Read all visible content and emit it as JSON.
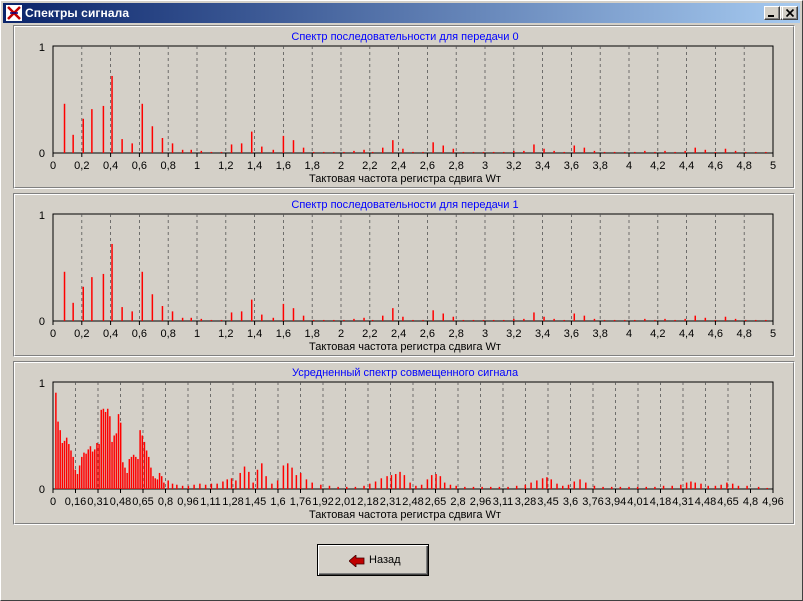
{
  "window": {
    "title": "Спектры сигнала",
    "controls": [
      "minimize",
      "maximize",
      "close"
    ]
  },
  "charts": [
    {
      "title": "Спектр  последовательности для передачи 0",
      "xlabel": "Тактовая частота регистра сдвига Wт",
      "ymax_label": "1",
      "ymin_label": "0",
      "xticks": [
        "0",
        "0,2",
        "0,4",
        "0,6",
        "0,8",
        "1",
        "1,2",
        "1,4",
        "1,6",
        "1,8",
        "2",
        "2,2",
        "2,4",
        "2,6",
        "2,8",
        "3",
        "3,2",
        "3,4",
        "3,6",
        "3,8",
        "4",
        "4,2",
        "4,4",
        "4,6",
        "4,8",
        "5"
      ]
    },
    {
      "title": "Спектр последовательности для передачи 1",
      "xlabel": "Тактовая частота регистра сдвига Wт",
      "ymax_label": "1",
      "ymin_label": "0",
      "xticks": [
        "0",
        "0,2",
        "0,4",
        "0,6",
        "0,8",
        "1",
        "1,2",
        "1,4",
        "1,6",
        "1,8",
        "2",
        "2,2",
        "2,4",
        "2,6",
        "2,8",
        "3",
        "3,2",
        "3,4",
        "3,6",
        "3,8",
        "4",
        "4,2",
        "4,4",
        "4,6",
        "4,8",
        "5"
      ]
    },
    {
      "title": "Усредненный спектр совмещенного сигнала",
      "xlabel": "Тактовая частота регистра сдвига Wт",
      "ymax_label": "1",
      "ymin_label": "0",
      "xticks": [
        "0",
        "0,16",
        "0,31",
        "0,48",
        "0,65",
        "0,8",
        "0,96",
        "1,11",
        "1,28",
        "1,45",
        "1,6",
        "1,76",
        "1,92",
        "2,01",
        "2,18",
        "2,31",
        "2,48",
        "2,65",
        "2,8",
        "2,96",
        "3,11",
        "3,28",
        "3,45",
        "3,6",
        "3,76",
        "3,94",
        "4,01",
        "4,18",
        "4,31",
        "4,48",
        "4,65",
        "4,8",
        "4,96"
      ]
    }
  ],
  "chart_data": [
    {
      "type": "bar",
      "title": "Спектр  последовательности для передачи 0",
      "xlabel": "Тактовая частота регистра сдвига Wт",
      "xlim": [
        0,
        5
      ],
      "ylim": [
        0,
        1
      ],
      "grid": "vertical dashed",
      "color": "#ff0000",
      "x": [
        0.08,
        0.14,
        0.21,
        0.27,
        0.35,
        0.41,
        0.48,
        0.55,
        0.62,
        0.69,
        0.76,
        0.83,
        0.9,
        0.96,
        1.03,
        1.1,
        1.17,
        1.24,
        1.31,
        1.38,
        1.45,
        1.53,
        1.6,
        1.67,
        1.74,
        1.81,
        1.88,
        1.95,
        2.02,
        2.09,
        2.16,
        2.22,
        2.29,
        2.36,
        2.43,
        2.5,
        2.57,
        2.64,
        2.71,
        2.78,
        2.85,
        2.92,
        2.99,
        3.06,
        3.13,
        3.2,
        3.27,
        3.34,
        3.41,
        3.48,
        3.55,
        3.62,
        3.69,
        3.76,
        3.83,
        3.9,
        3.97,
        4.04,
        4.11,
        4.18,
        4.25,
        4.32,
        4.39,
        4.46,
        4.53,
        4.6,
        4.67,
        4.74,
        4.81,
        4.88,
        4.95
      ],
      "y": [
        0.46,
        0.17,
        0.32,
        0.41,
        0.44,
        0.72,
        0.13,
        0.09,
        0.46,
        0.25,
        0.14,
        0.09,
        0.03,
        0.03,
        0.02,
        0.01,
        0.01,
        0.08,
        0.09,
        0.2,
        0.06,
        0.03,
        0.16,
        0.12,
        0.05,
        0.01,
        0.01,
        0.01,
        0.01,
        0.02,
        0.03,
        0.01,
        0.05,
        0.12,
        0.04,
        0.01,
        0.01,
        0.1,
        0.07,
        0.04,
        0.01,
        0.01,
        0.01,
        0.01,
        0.01,
        0.02,
        0.02,
        0.08,
        0.04,
        0.02,
        0.01,
        0.07,
        0.05,
        0.02,
        0.01,
        0.01,
        0.01,
        0.01,
        0.02,
        0.01,
        0.02,
        0.01,
        0.02,
        0.05,
        0.03,
        0.01,
        0.04,
        0.02,
        0.01,
        0.01,
        0.01
      ]
    },
    {
      "type": "bar",
      "title": "Спектр последовательности для передачи 1",
      "xlabel": "Тактовая частота регистра сдвига Wт",
      "xlim": [
        0,
        5
      ],
      "ylim": [
        0,
        1
      ],
      "grid": "vertical dashed",
      "color": "#ff0000",
      "x": [
        0.08,
        0.14,
        0.21,
        0.27,
        0.35,
        0.41,
        0.48,
        0.55,
        0.62,
        0.69,
        0.76,
        0.83,
        0.9,
        0.96,
        1.03,
        1.1,
        1.17,
        1.24,
        1.31,
        1.38,
        1.45,
        1.53,
        1.6,
        1.67,
        1.74,
        1.81,
        1.88,
        1.95,
        2.02,
        2.09,
        2.16,
        2.22,
        2.29,
        2.36,
        2.43,
        2.5,
        2.57,
        2.64,
        2.71,
        2.78,
        2.85,
        2.92,
        2.99,
        3.06,
        3.13,
        3.2,
        3.27,
        3.34,
        3.41,
        3.48,
        3.55,
        3.62,
        3.69,
        3.76,
        3.83,
        3.9,
        3.97,
        4.04,
        4.11,
        4.18,
        4.25,
        4.32,
        4.39,
        4.46,
        4.53,
        4.6,
        4.67,
        4.74,
        4.81,
        4.88,
        4.95
      ],
      "y": [
        0.46,
        0.17,
        0.32,
        0.41,
        0.44,
        0.72,
        0.13,
        0.09,
        0.46,
        0.25,
        0.14,
        0.09,
        0.03,
        0.03,
        0.02,
        0.01,
        0.01,
        0.08,
        0.09,
        0.2,
        0.06,
        0.03,
        0.16,
        0.12,
        0.05,
        0.01,
        0.01,
        0.01,
        0.01,
        0.02,
        0.03,
        0.01,
        0.05,
        0.12,
        0.04,
        0.01,
        0.01,
        0.1,
        0.07,
        0.04,
        0.01,
        0.01,
        0.01,
        0.01,
        0.01,
        0.02,
        0.02,
        0.08,
        0.04,
        0.02,
        0.01,
        0.07,
        0.05,
        0.02,
        0.01,
        0.01,
        0.01,
        0.01,
        0.02,
        0.01,
        0.02,
        0.01,
        0.02,
        0.05,
        0.03,
        0.01,
        0.04,
        0.02,
        0.01,
        0.01,
        0.01
      ]
    },
    {
      "type": "bar",
      "title": "Усредненный спектр совмещенного сигнала",
      "xlabel": "Тактовая частота регистра сдвига Wт",
      "xlim": [
        0,
        5
      ],
      "ylim": [
        0,
        1
      ],
      "grid": "vertical dashed",
      "color": "#ff0000",
      "x": [
        0.02,
        0.035,
        0.05,
        0.065,
        0.08,
        0.095,
        0.11,
        0.125,
        0.14,
        0.155,
        0.17,
        0.185,
        0.2,
        0.215,
        0.23,
        0.245,
        0.26,
        0.275,
        0.29,
        0.305,
        0.32,
        0.335,
        0.35,
        0.365,
        0.38,
        0.395,
        0.41,
        0.425,
        0.44,
        0.455,
        0.47,
        0.485,
        0.5,
        0.515,
        0.53,
        0.545,
        0.56,
        0.575,
        0.59,
        0.605,
        0.62,
        0.635,
        0.65,
        0.665,
        0.68,
        0.695,
        0.71,
        0.725,
        0.74,
        0.755,
        0.77,
        0.8,
        0.83,
        0.86,
        0.9,
        0.94,
        0.98,
        1.02,
        1.06,
        1.1,
        1.14,
        1.18,
        1.21,
        1.24,
        1.27,
        1.3,
        1.33,
        1.36,
        1.39,
        1.42,
        1.45,
        1.48,
        1.52,
        1.56,
        1.6,
        1.63,
        1.66,
        1.69,
        1.72,
        1.76,
        1.8,
        1.86,
        1.92,
        1.98,
        2.04,
        2.1,
        2.16,
        2.2,
        2.24,
        2.28,
        2.32,
        2.35,
        2.38,
        2.41,
        2.44,
        2.48,
        2.52,
        2.56,
        2.6,
        2.63,
        2.66,
        2.69,
        2.72,
        2.76,
        2.8,
        2.86,
        2.92,
        2.98,
        3.04,
        3.1,
        3.16,
        3.22,
        3.28,
        3.32,
        3.36,
        3.4,
        3.43,
        3.46,
        3.5,
        3.54,
        3.58,
        3.62,
        3.66,
        3.7,
        3.76,
        3.82,
        3.88,
        3.94,
        4.0,
        4.06,
        4.12,
        4.18,
        4.24,
        4.3,
        4.36,
        4.4,
        4.43,
        4.46,
        4.5,
        4.55,
        4.6,
        4.64,
        4.68,
        4.72,
        4.76,
        4.82,
        4.9,
        4.96
      ],
      "y": [
        0.9,
        0.63,
        0.55,
        0.43,
        0.45,
        0.48,
        0.42,
        0.36,
        0.3,
        0.18,
        0.14,
        0.22,
        0.3,
        0.34,
        0.33,
        0.37,
        0.4,
        0.35,
        0.37,
        0.43,
        0.42,
        0.74,
        0.75,
        0.72,
        0.75,
        0.68,
        0.44,
        0.5,
        0.52,
        0.7,
        0.62,
        0.25,
        0.2,
        0.15,
        0.28,
        0.3,
        0.32,
        0.3,
        0.28,
        0.55,
        0.5,
        0.44,
        0.36,
        0.3,
        0.2,
        0.12,
        0.1,
        0.09,
        0.15,
        0.12,
        0.06,
        0.08,
        0.05,
        0.04,
        0.03,
        0.03,
        0.04,
        0.05,
        0.04,
        0.05,
        0.05,
        0.07,
        0.09,
        0.1,
        0.08,
        0.15,
        0.21,
        0.16,
        0.06,
        0.18,
        0.24,
        0.12,
        0.05,
        0.08,
        0.22,
        0.24,
        0.2,
        0.13,
        0.15,
        0.09,
        0.06,
        0.04,
        0.03,
        0.02,
        0.02,
        0.02,
        0.03,
        0.05,
        0.07,
        0.1,
        0.12,
        0.13,
        0.14,
        0.16,
        0.13,
        0.06,
        0.03,
        0.04,
        0.09,
        0.13,
        0.14,
        0.12,
        0.06,
        0.04,
        0.03,
        0.02,
        0.02,
        0.02,
        0.02,
        0.02,
        0.02,
        0.03,
        0.04,
        0.06,
        0.08,
        0.1,
        0.11,
        0.09,
        0.05,
        0.03,
        0.04,
        0.07,
        0.09,
        0.06,
        0.03,
        0.02,
        0.02,
        0.02,
        0.02,
        0.02,
        0.02,
        0.02,
        0.03,
        0.03,
        0.04,
        0.06,
        0.07,
        0.06,
        0.05,
        0.03,
        0.03,
        0.04,
        0.06,
        0.05,
        0.03,
        0.03,
        0.02,
        0.01
      ]
    }
  ],
  "back_button": {
    "label": "Назад",
    "icon": "left-arrow-icon",
    "icon_color": "#c00000"
  },
  "colors": {
    "face": "#d4d0c8",
    "bar": "#ff0000",
    "title": "#0000ff",
    "titlebar": "#0a246a"
  }
}
